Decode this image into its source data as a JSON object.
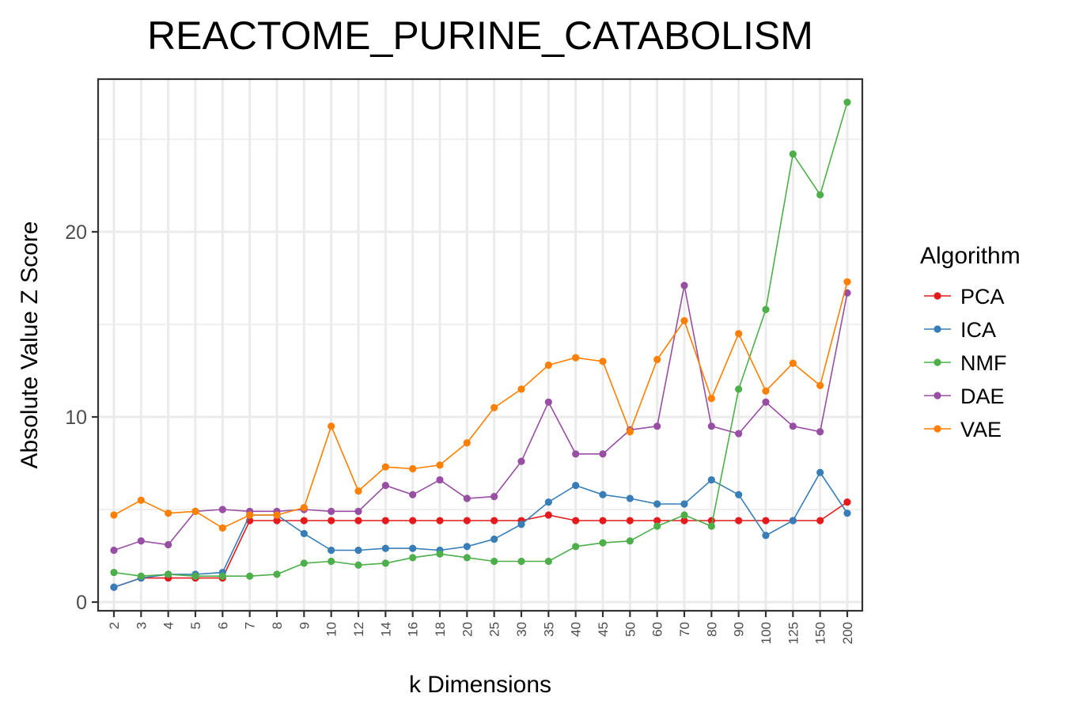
{
  "chart_data": {
    "type": "line",
    "title": "REACTOME_PURINE_CATABOLISM",
    "xlabel": "k Dimensions",
    "ylabel": "Absolute Value Z Score",
    "categories": [
      "2",
      "3",
      "4",
      "5",
      "6",
      "7",
      "8",
      "9",
      "10",
      "12",
      "14",
      "16",
      "18",
      "20",
      "25",
      "30",
      "35",
      "40",
      "45",
      "50",
      "60",
      "70",
      "80",
      "90",
      "100",
      "125",
      "150",
      "200"
    ],
    "ylim": [
      -0.5,
      28
    ],
    "yticks": [
      0,
      10,
      20
    ],
    "y_minor_ticks": [
      5,
      15,
      25
    ],
    "grid": true,
    "legend": {
      "title": "Algorithm",
      "placement": "right"
    },
    "series": [
      {
        "name": "PCA",
        "color": "#E41A1C",
        "values": [
          0.8,
          1.3,
          1.3,
          1.3,
          1.3,
          4.4,
          4.4,
          4.4,
          4.4,
          4.4,
          4.4,
          4.4,
          4.4,
          4.4,
          4.4,
          4.4,
          4.7,
          4.4,
          4.4,
          4.4,
          4.4,
          4.4,
          4.4,
          4.4,
          4.4,
          4.4,
          4.4,
          5.4
        ]
      },
      {
        "name": "ICA",
        "color": "#377EB8",
        "values": [
          0.8,
          1.3,
          1.5,
          1.5,
          1.6,
          4.7,
          4.7,
          3.7,
          2.8,
          2.8,
          2.9,
          2.9,
          2.8,
          3.0,
          3.4,
          4.2,
          5.4,
          6.3,
          5.8,
          5.6,
          5.3,
          5.3,
          6.6,
          5.8,
          3.6,
          4.4,
          7.0,
          4.8
        ]
      },
      {
        "name": "NMF",
        "color": "#4DAF4A",
        "values": [
          1.6,
          1.4,
          1.5,
          1.4,
          1.4,
          1.4,
          1.5,
          2.1,
          2.2,
          2.0,
          2.1,
          2.4,
          2.6,
          2.4,
          2.2,
          2.2,
          2.2,
          3.0,
          3.2,
          3.3,
          4.1,
          4.7,
          4.1,
          11.5,
          15.8,
          24.2,
          22.0,
          27.0
        ]
      },
      {
        "name": "DAE",
        "color": "#984EA3",
        "values": [
          2.8,
          3.3,
          3.1,
          4.9,
          5.0,
          4.9,
          4.9,
          5.0,
          4.9,
          4.9,
          6.3,
          5.8,
          6.6,
          5.6,
          5.7,
          7.6,
          10.8,
          8.0,
          8.0,
          9.3,
          9.5,
          17.1,
          9.5,
          9.1,
          10.8,
          9.5,
          9.2,
          16.7
        ]
      },
      {
        "name": "VAE",
        "color": "#FF7F00",
        "values": [
          4.7,
          5.5,
          4.8,
          4.9,
          4.0,
          4.7,
          4.7,
          5.1,
          9.5,
          6.0,
          7.3,
          7.2,
          7.4,
          8.6,
          10.5,
          11.5,
          12.8,
          13.2,
          13.0,
          9.2,
          13.1,
          15.2,
          11.0,
          14.5,
          11.4,
          12.9,
          11.7,
          17.3
        ]
      }
    ]
  }
}
